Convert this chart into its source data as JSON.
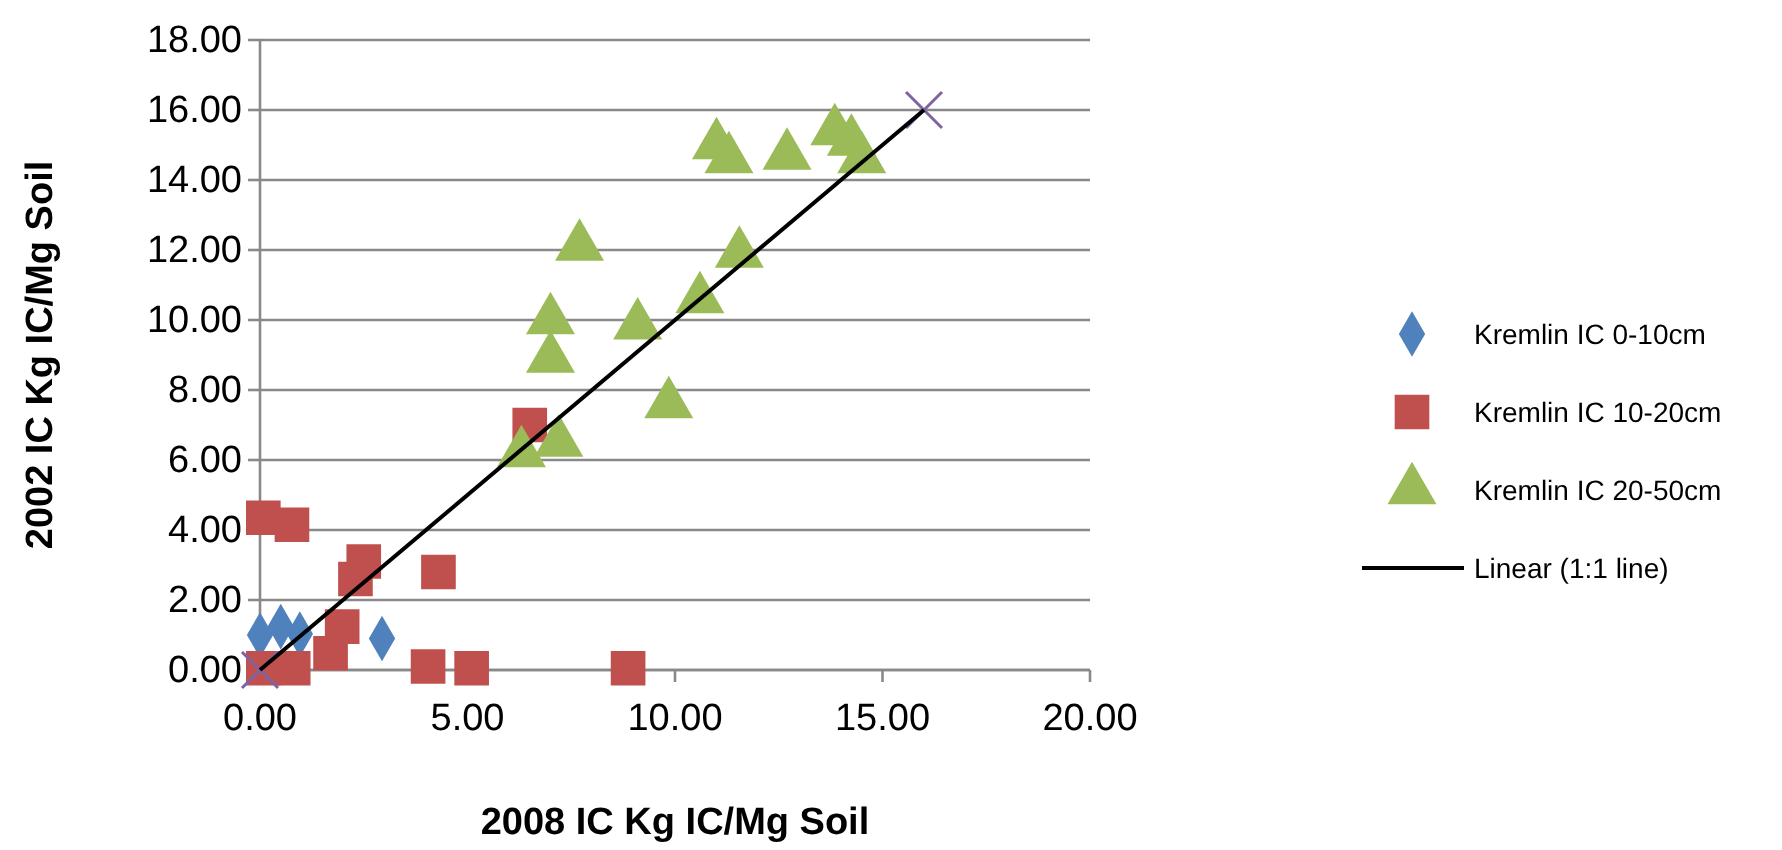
{
  "chart_data": {
    "type": "scatter",
    "xlabel": "2008 IC Kg IC/Mg Soil",
    "ylabel": "2002 IC Kg IC/Mg Soil",
    "xlim": [
      0,
      20
    ],
    "xticks": [
      {
        "value": 0,
        "label": "0.00"
      },
      {
        "value": 5,
        "label": "5.00"
      },
      {
        "value": 10,
        "label": "10.00"
      },
      {
        "value": 15,
        "label": "15.00"
      },
      {
        "value": 20,
        "label": "20.00"
      }
    ],
    "ylim": [
      0,
      18
    ],
    "yticks": [
      {
        "value": 0,
        "label": "0.00"
      },
      {
        "value": 2,
        "label": "2.00"
      },
      {
        "value": 4,
        "label": "4.00"
      },
      {
        "value": 6,
        "label": "6.00"
      },
      {
        "value": 8,
        "label": "8.00"
      },
      {
        "value": 10,
        "label": "10.00"
      },
      {
        "value": 12,
        "label": "12.00"
      },
      {
        "value": 14,
        "label": "14.00"
      },
      {
        "value": 16,
        "label": "16.00"
      },
      {
        "value": 18,
        "label": "18.00"
      }
    ],
    "grid": "y",
    "legend": "right",
    "series": [
      {
        "name": "Kremlin IC 0-10cm",
        "color": "#4f81bd",
        "marker": "diamond",
        "x": [
          0,
          0.5,
          0.96,
          2.94
        ],
        "values": [
          1.0,
          1.24,
          1.03,
          0.9
        ]
      },
      {
        "name": "Kremlin IC 10-20cm",
        "color": "#c0504d",
        "marker": "square",
        "x": [
          0.08,
          0.77,
          2.5,
          2.3,
          4.3,
          1.98,
          1.7,
          0.08,
          0.8,
          4.05,
          5.1,
          8.87,
          6.5
        ],
        "values": [
          4.35,
          4.15,
          3.1,
          2.6,
          2.8,
          1.24,
          0.48,
          0.05,
          0.05,
          0.1,
          0.05,
          0.05,
          7.0
        ]
      },
      {
        "name": "Kremlin IC 20-50cm",
        "color": "#9bbb59",
        "marker": "triangle",
        "x": [
          11.0,
          11.3,
          12.7,
          13.85,
          14.25,
          14.5,
          7.7,
          11.55,
          10.6,
          7.0,
          9.1,
          7.0,
          9.85,
          7.2,
          6.3
        ],
        "values": [
          15.0,
          14.6,
          14.7,
          15.4,
          15.1,
          14.6,
          12.1,
          11.9,
          10.6,
          10.0,
          9.85,
          8.9,
          7.6,
          6.5,
          6.2
        ]
      },
      {
        "color": "#8064a2",
        "marker": "cross",
        "x": [
          0,
          16
        ],
        "values": [
          0,
          16
        ]
      },
      {
        "name": "Linear (1:1 line)",
        "type": "line",
        "color": "#000000",
        "marker": "none",
        "x": [
          0,
          16
        ],
        "values": [
          0,
          16
        ]
      }
    ]
  }
}
